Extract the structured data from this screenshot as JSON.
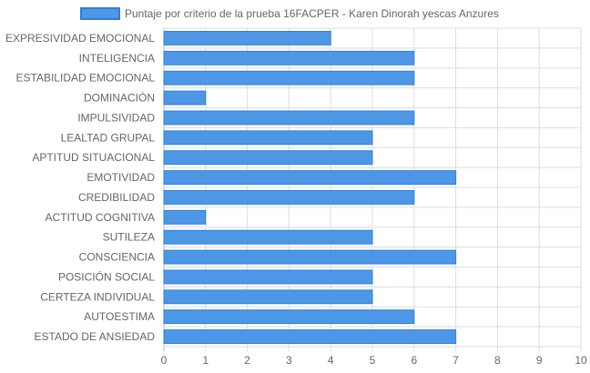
{
  "chart_data": {
    "type": "bar",
    "orientation": "horizontal",
    "categories": [
      "EXPRESIVIDAD EMOCIONAL",
      "INTELIGENCIA",
      "ESTABILIDAD EMOCIONAL",
      "DOMINACIÓN",
      "IMPULSIVIDAD",
      "LEALTAD GRUPAL",
      "APTITUD SITUACIONAL",
      "EMOTIVIDAD",
      "CREDIBILIDAD",
      "ACTITUD COGNITIVA",
      "SUTILEZA",
      "CONSCIENCIA",
      "POSICIÓN SOCIAL",
      "CERTEZA INDIVIDUAL",
      "AUTOESTIMA",
      "ESTADO DE ANSIEDAD"
    ],
    "series": [
      {
        "name": "Puntaje por criterio de la prueba 16FACPER - Karen Dinorah yescas Anzures",
        "values": [
          4,
          6,
          6,
          1,
          6,
          5,
          5,
          7,
          6,
          1,
          5,
          7,
          5,
          5,
          6,
          7
        ]
      }
    ],
    "xlim": [
      0,
      10
    ],
    "x_ticks": [
      "0",
      "1",
      "2",
      "3",
      "4",
      "5",
      "6",
      "7",
      "8",
      "9",
      "10"
    ],
    "grid": true,
    "legend_position": "top",
    "colors": {
      "bar_fill": "#4e97e6",
      "bar_stroke": "#2f7fd9",
      "grid": "#dddddd",
      "axis": "#bbbbbb",
      "text": "#666666"
    }
  }
}
